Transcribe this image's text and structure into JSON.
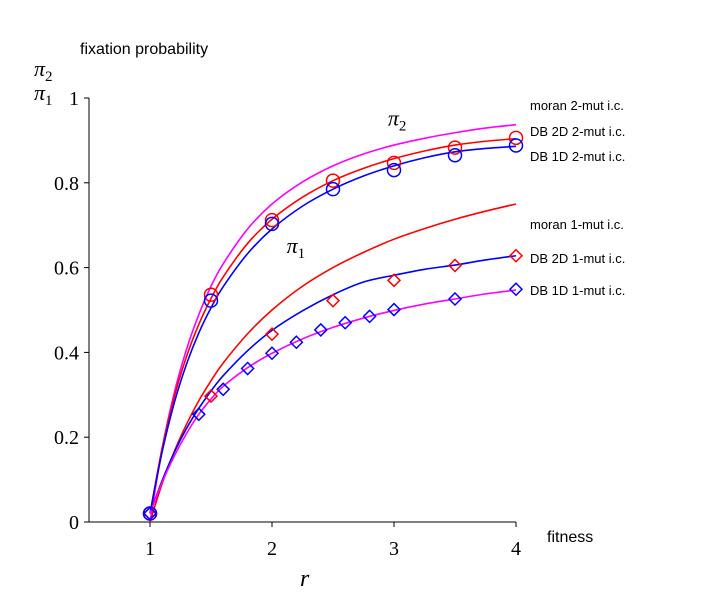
{
  "chart_data": {
    "type": "line",
    "ylabel": "fixation probability",
    "ylabel_symbols": {
      "top": "π",
      "top_sub": "2",
      "bottom": "π",
      "bottom_sub": "1"
    },
    "xlabel": "r",
    "xlabel_right": "fitness",
    "xlim": [
      0.5,
      4
    ],
    "ylim": [
      0,
      1
    ],
    "x_ticks": [
      1,
      2,
      3,
      4
    ],
    "y_ticks": [
      0,
      0.2,
      0.4,
      0.6,
      0.8,
      1
    ],
    "y_tick_labels": [
      "0",
      "0.2",
      "0.4",
      "0.6",
      "0.8",
      "1"
    ],
    "grid": false,
    "curve_labels": [
      {
        "symbol": "π",
        "sub": "2",
        "x": 2.95,
        "y": 0.935
      },
      {
        "symbol": "π",
        "sub": "1",
        "x": 2.12,
        "y": 0.635
      }
    ],
    "series": [
      {
        "name": "moran 2-mut i.c.",
        "color": "#ff00ff",
        "style": "line",
        "y_end": 0.937,
        "x": [
          1,
          1.1,
          1.2,
          1.3,
          1.4,
          1.5,
          1.6,
          1.8,
          2,
          2.25,
          2.5,
          2.75,
          3,
          3.25,
          3.5,
          3.75,
          4
        ],
        "y": [
          0,
          0.174,
          0.306,
          0.408,
          0.489,
          0.556,
          0.609,
          0.691,
          0.75,
          0.802,
          0.84,
          0.868,
          0.889,
          0.905,
          0.918,
          0.929,
          0.937
        ]
      },
      {
        "name": "DB 2D 2-mut i.c.",
        "color": "#ff0000",
        "style": "line+circle",
        "y_end": 0.904,
        "x": [
          1,
          1.1,
          1.2,
          1.3,
          1.4,
          1.5,
          1.6,
          1.8,
          2,
          2.25,
          2.5,
          2.75,
          3,
          3.25,
          3.5,
          3.75,
          4
        ],
        "y": [
          0.02,
          0.175,
          0.296,
          0.391,
          0.466,
          0.527,
          0.578,
          0.657,
          0.714,
          0.766,
          0.805,
          0.834,
          0.857,
          0.875,
          0.889,
          0.898,
          0.904
        ],
        "markers": {
          "x": [
            1,
            1.5,
            2,
            2.5,
            3,
            3.5,
            4
          ],
          "y": [
            0.02,
            0.536,
            0.712,
            0.805,
            0.847,
            0.883,
            0.906
          ]
        }
      },
      {
        "name": "DB 1D 2-mut i.c.",
        "color": "#0000ff",
        "style": "line+circle",
        "y_end": 0.886,
        "x": [
          1,
          1.1,
          1.2,
          1.3,
          1.4,
          1.5,
          1.6,
          1.8,
          2,
          2.25,
          2.5,
          2.75,
          3,
          3.25,
          3.5,
          3.75,
          4
        ],
        "y": [
          0.02,
          0.166,
          0.282,
          0.373,
          0.446,
          0.505,
          0.555,
          0.633,
          0.691,
          0.745,
          0.785,
          0.816,
          0.84,
          0.859,
          0.873,
          0.881,
          0.886
        ],
        "markers": {
          "x": [
            1,
            1.5,
            2,
            2.5,
            3,
            3.5,
            4
          ],
          "y": [
            0.02,
            0.522,
            0.703,
            0.785,
            0.83,
            0.865,
            0.888
          ]
        }
      },
      {
        "name": "moran 1-mut i.c.",
        "color": "#ff0000",
        "style": "line",
        "y_end": 0.75,
        "x": [
          1,
          1.1,
          1.2,
          1.3,
          1.4,
          1.5,
          1.6,
          1.8,
          2,
          2.25,
          2.5,
          2.75,
          3,
          3.25,
          3.5,
          3.75,
          4
        ],
        "y": [
          0,
          0.091,
          0.167,
          0.231,
          0.286,
          0.333,
          0.375,
          0.444,
          0.5,
          0.556,
          0.6,
          0.636,
          0.667,
          0.692,
          0.714,
          0.733,
          0.75
        ]
      },
      {
        "name": "DB 2D 1-mut i.c.",
        "color": "#ff0000",
        "style": "diamond",
        "y_end": 0.628,
        "markers": {
          "x": [
            1,
            1.5,
            2,
            2.5,
            3,
            3.5,
            4
          ],
          "y": [
            0.02,
            0.297,
            0.443,
            0.522,
            0.57,
            0.605,
            0.628
          ]
        }
      },
      {
        "name": "DB 1D 1-mut i.c.",
        "color": "#0000ff",
        "style": "diamond",
        "y_end": 0.547,
        "markers": {
          "x": [
            1,
            1.4,
            1.6,
            1.8,
            2,
            2.2,
            2.4,
            2.6,
            2.8,
            3,
            3.5,
            4
          ],
          "y": [
            0.02,
            0.254,
            0.313,
            0.362,
            0.398,
            0.424,
            0.453,
            0.47,
            0.485,
            0.501,
            0.526,
            0.549
          ]
        }
      },
      {
        "name": "",
        "color": "#0000ff",
        "style": "line",
        "x": [
          1,
          1.1,
          1.2,
          1.3,
          1.4,
          1.5,
          1.6,
          1.8,
          2,
          2.25,
          2.5,
          2.75,
          3,
          3.25,
          3.5,
          3.75,
          4
        ],
        "y": [
          0.02,
          0.098,
          0.165,
          0.221,
          0.268,
          0.309,
          0.345,
          0.404,
          0.452,
          0.498,
          0.536,
          0.566,
          0.582,
          0.596,
          0.606,
          0.618,
          0.628
        ]
      },
      {
        "name": "",
        "color": "#ff00ff",
        "style": "line",
        "x": [
          1,
          1.1,
          1.2,
          1.3,
          1.4,
          1.5,
          1.6,
          1.8,
          2,
          2.25,
          2.5,
          2.75,
          3,
          3.25,
          3.5,
          3.75,
          4
        ],
        "y": [
          0.02,
          0.094,
          0.156,
          0.209,
          0.254,
          0.29,
          0.32,
          0.364,
          0.398,
          0.432,
          0.459,
          0.481,
          0.499,
          0.514,
          0.526,
          0.538,
          0.547
        ]
      }
    ]
  }
}
